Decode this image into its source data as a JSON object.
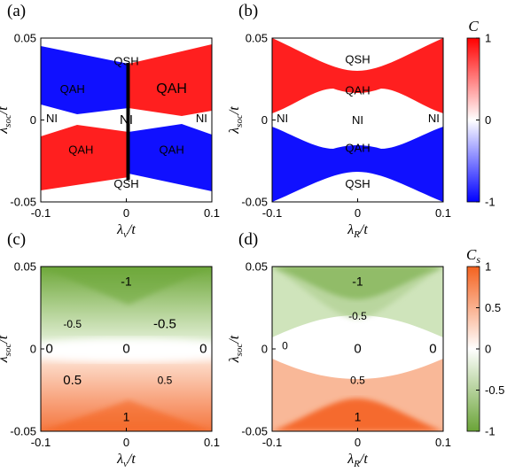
{
  "chart_data": [
    {
      "type": "heatmap",
      "panel_label": "(a)",
      "xlabel": {
        "main": "λ",
        "sub": "v",
        "tail": "/t"
      },
      "ylabel": {
        "main": "λ",
        "sub": "soc",
        "tail": "/t"
      },
      "xlim": [
        -0.1,
        0.1
      ],
      "ylim": [
        -0.05,
        0.05
      ],
      "xticks": [
        "-0.1",
        "0",
        "0.1"
      ],
      "yticks": [
        "0.05",
        "0",
        "-0.05"
      ],
      "colorbar": "C",
      "boundary_lines": [
        0.0
      ],
      "regions": [
        {
          "text": "QSH",
          "x": 0.0,
          "y": 0.036,
          "value": 0,
          "color": "#ffffff",
          "text_color": "#000000",
          "size": 13
        },
        {
          "text": "QAH",
          "x": -0.063,
          "y": 0.019,
          "value": -1,
          "color": "#1010ff",
          "text_color": "#ffffff",
          "size": 13
        },
        {
          "text": "QAH",
          "x": 0.053,
          "y": 0.019,
          "value": 1,
          "color": "#ff1f1f",
          "text_color": "#ffffff",
          "size": 16
        },
        {
          "text": "NI",
          "x": -0.087,
          "y": 0.001,
          "value": 0,
          "color": "#ffffff",
          "text_color": "#000000",
          "size": 13
        },
        {
          "text": "NI",
          "x": 0.0,
          "y": 0.0,
          "value": 0,
          "color": "#ffffff",
          "text_color": "#000000",
          "size": 15
        },
        {
          "text": "NI",
          "x": 0.088,
          "y": 0.001,
          "value": 0,
          "color": "#ffffff",
          "text_color": "#000000",
          "size": 13
        },
        {
          "text": "QAH",
          "x": -0.053,
          "y": -0.018,
          "value": 1,
          "color": "#ff1f1f",
          "text_color": "#ffffff",
          "size": 13
        },
        {
          "text": "QAH",
          "x": 0.053,
          "y": -0.018,
          "value": -1,
          "color": "#1010ff",
          "text_color": "#ffffff",
          "size": 13
        },
        {
          "text": "QSH",
          "x": 0.0,
          "y": -0.039,
          "value": 0,
          "color": "#ffffff",
          "text_color": "#000000",
          "size": 13
        }
      ]
    },
    {
      "type": "heatmap",
      "panel_label": "(b)",
      "xlabel": {
        "main": "λ",
        "sub": "R",
        "tail": "/t"
      },
      "ylabel": {
        "main": "λ",
        "sub": "soc",
        "tail": "/t"
      },
      "xlim": [
        -0.1,
        0.1
      ],
      "ylim": [
        -0.05,
        0.05
      ],
      "xticks": [
        "-0.1",
        "0",
        "0.1"
      ],
      "yticks": [
        "0.05",
        "0",
        "-0.05"
      ],
      "colorbar": "C",
      "regions": [
        {
          "text": "QSH",
          "x": 0.0,
          "y": 0.037,
          "value": 0,
          "color": "#ffffff",
          "text_color": "#000000",
          "size": 13
        },
        {
          "text": "QAH",
          "x": 0.0,
          "y": 0.018,
          "value": 1,
          "color": "#ff1f1f",
          "text_color": "#ffffff",
          "size": 13
        },
        {
          "text": "NI",
          "x": -0.088,
          "y": 0.001,
          "value": 0,
          "color": "#ffffff",
          "text_color": "#000000",
          "size": 13
        },
        {
          "text": "NI",
          "x": 0.0,
          "y": 0.0,
          "value": 0,
          "color": "#ffffff",
          "text_color": "#000000",
          "size": 13
        },
        {
          "text": "NI",
          "x": 0.089,
          "y": 0.001,
          "value": 0,
          "color": "#ffffff",
          "text_color": "#000000",
          "size": 13
        },
        {
          "text": "QAH",
          "x": 0.0,
          "y": -0.017,
          "value": -1,
          "color": "#1010ff",
          "text_color": "#ffffff",
          "size": 13
        },
        {
          "text": "QSH",
          "x": 0.0,
          "y": -0.039,
          "value": 0,
          "color": "#ffffff",
          "text_color": "#000000",
          "size": 13
        }
      ]
    },
    {
      "type": "heatmap",
      "panel_label": "(c)",
      "xlabel": {
        "main": "λ",
        "sub": "v",
        "tail": "/t"
      },
      "ylabel": {
        "main": "λ",
        "sub": "soc",
        "tail": "/t"
      },
      "xlim": [
        -0.1,
        0.1
      ],
      "ylim": [
        -0.05,
        0.05
      ],
      "xticks": [
        "-0.1",
        "0",
        "0.1"
      ],
      "yticks": [
        "0.05",
        "0",
        "-0.05"
      ],
      "colorbar": "Cs",
      "regions": [
        {
          "text": "-1",
          "x": 0.0,
          "y": 0.041,
          "value": -1,
          "color": "#6aa437",
          "text_color": "#000000",
          "size": 14
        },
        {
          "text": "-0.5",
          "x": -0.063,
          "y": 0.015,
          "value": -0.5,
          "color": "#c4dcaa",
          "text_color": "#000000",
          "size": 12
        },
        {
          "text": "-0.5",
          "x": 0.045,
          "y": 0.015,
          "value": -0.5,
          "color": "#c4dcaa",
          "text_color": "#000000",
          "size": 15
        },
        {
          "text": "0",
          "x": -0.09,
          "y": 0.0,
          "value": 0,
          "color": "#ffffff",
          "text_color": "#000000",
          "size": 15
        },
        {
          "text": "0",
          "x": 0.0,
          "y": 0.0,
          "value": 0,
          "color": "#ffffff",
          "text_color": "#000000",
          "size": 15
        },
        {
          "text": "0",
          "x": 0.09,
          "y": 0.0,
          "value": 0,
          "color": "#ffffff",
          "text_color": "#000000",
          "size": 15
        },
        {
          "text": "0.5",
          "x": -0.063,
          "y": -0.019,
          "value": 0.5,
          "color": "#f9b492",
          "text_color": "#000000",
          "size": 15
        },
        {
          "text": "0.5",
          "x": 0.045,
          "y": -0.019,
          "value": 0.5,
          "color": "#f9b492",
          "text_color": "#000000",
          "size": 12
        },
        {
          "text": "1",
          "x": 0.0,
          "y": -0.041,
          "value": 1,
          "color": "#f56a2e",
          "text_color": "#000000",
          "size": 14
        }
      ]
    },
    {
      "type": "heatmap",
      "panel_label": "(d)",
      "xlabel": {
        "main": "λ",
        "sub": "R",
        "tail": "/t"
      },
      "ylabel": {
        "main": "λ",
        "sub": "soc",
        "tail": "/t"
      },
      "xlim": [
        -0.1,
        0.1
      ],
      "ylim": [
        -0.05,
        0.05
      ],
      "xticks": [
        "-0.1",
        "0",
        "0.1"
      ],
      "yticks": [
        "0.05",
        "0",
        "-0.05"
      ],
      "colorbar": "Cs",
      "regions": [
        {
          "text": "-1",
          "x": 0.0,
          "y": 0.041,
          "value": -1,
          "color": "#6aa437",
          "text_color": "#000000",
          "size": 14
        },
        {
          "text": "-0.5",
          "x": 0.0,
          "y": 0.02,
          "value": -0.5,
          "color": "#c4dcaa",
          "text_color": "#000000",
          "size": 12
        },
        {
          "text": "0",
          "x": -0.085,
          "y": 0.002,
          "value": 0,
          "color": "#ffffff",
          "text_color": "#000000",
          "size": 12
        },
        {
          "text": "0",
          "x": 0.0,
          "y": 0.0,
          "value": 0,
          "color": "#ffffff",
          "text_color": "#000000",
          "size": 15
        },
        {
          "text": "0",
          "x": 0.088,
          "y": 0.0,
          "value": 0,
          "color": "#ffffff",
          "text_color": "#000000",
          "size": 15
        },
        {
          "text": "0.5",
          "x": 0.0,
          "y": -0.019,
          "value": 0.5,
          "color": "#f9b492",
          "text_color": "#000000",
          "size": 12
        },
        {
          "text": "1",
          "x": 0.0,
          "y": -0.041,
          "value": 1,
          "color": "#f56a2e",
          "text_color": "#000000",
          "size": 14
        }
      ]
    }
  ],
  "colorbars": [
    {
      "id": "C",
      "label": {
        "main": "C",
        "sub": ""
      },
      "range": [
        -1,
        1
      ],
      "ticks": [
        "1",
        "0",
        "-1"
      ],
      "colors": [
        "#ff0000",
        "#ffffff",
        "#0000ff"
      ]
    },
    {
      "id": "Cs",
      "label": {
        "main": "C",
        "sub": "s"
      },
      "range": [
        -1,
        1
      ],
      "ticks": [
        "1",
        "0.5",
        "0",
        "-0.5",
        "-1"
      ],
      "colors": [
        "#f4621f",
        "#ffffff",
        "#6aa437"
      ]
    }
  ]
}
